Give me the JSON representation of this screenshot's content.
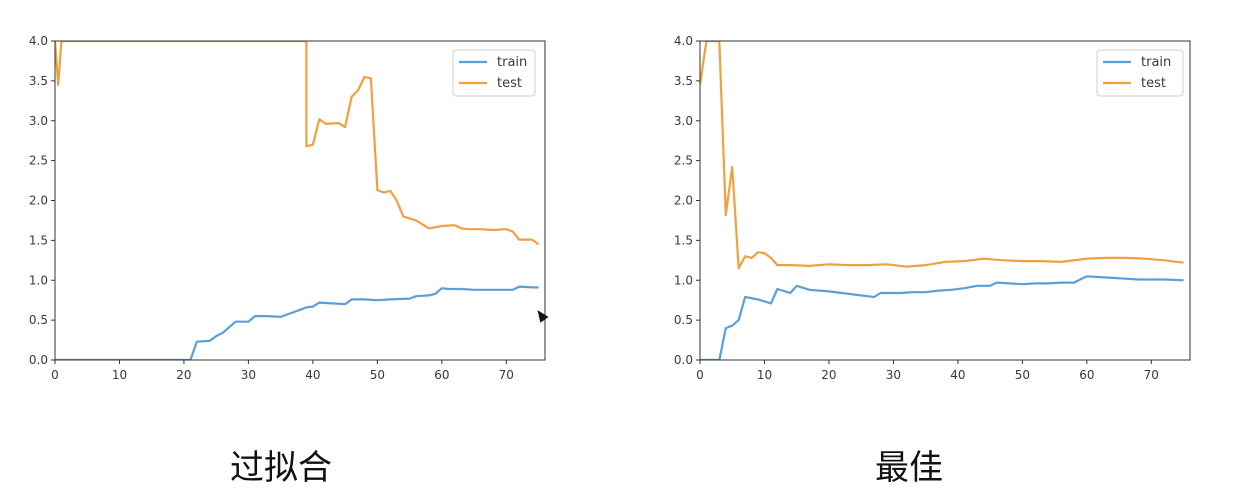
{
  "colors": {
    "train": "#5aa0d8",
    "test": "#f0a040",
    "axes": "#333333",
    "legend_border": "#cfcfcf"
  },
  "icons": {
    "cursor": "mouse-pointer-icon"
  },
  "chart_data": [
    {
      "type": "line",
      "caption": "过拟合",
      "xlim": [
        0,
        76
      ],
      "ylim": [
        0,
        4
      ],
      "xticks": [
        0,
        10,
        20,
        30,
        40,
        50,
        60,
        70
      ],
      "yticks": [
        0.0,
        0.5,
        1.0,
        1.5,
        2.0,
        2.5,
        3.0,
        3.5,
        4.0
      ],
      "tick_labels_x": [
        "0",
        "10",
        "20",
        "30",
        "40",
        "50",
        "60",
        "70"
      ],
      "tick_labels_y": [
        "0.0",
        "0.5",
        "1.0",
        "1.5",
        "2.0",
        "2.5",
        "3.0",
        "3.5",
        "4.0"
      ],
      "legend": "top-right",
      "grid": false,
      "series": [
        {
          "name": "train",
          "x": [
            0,
            21,
            22,
            24,
            25,
            26,
            27,
            28,
            30,
            31,
            33,
            35,
            36,
            37,
            38,
            39,
            40,
            41,
            43,
            45,
            46,
            48,
            50,
            52,
            55,
            56,
            58,
            59,
            60,
            61,
            63,
            65,
            67,
            69,
            71,
            72,
            74,
            75
          ],
          "y": [
            0.0,
            0.0,
            0.23,
            0.24,
            0.3,
            0.34,
            0.41,
            0.48,
            0.48,
            0.55,
            0.55,
            0.54,
            0.57,
            0.6,
            0.63,
            0.66,
            0.67,
            0.72,
            0.71,
            0.7,
            0.76,
            0.76,
            0.75,
            0.76,
            0.77,
            0.8,
            0.81,
            0.83,
            0.9,
            0.89,
            0.89,
            0.88,
            0.88,
            0.88,
            0.88,
            0.92,
            0.91,
            0.91
          ]
        },
        {
          "name": "test",
          "x": [
            0,
            0.5,
            1,
            39,
            39,
            40,
            41,
            42,
            44,
            45,
            46,
            47,
            48,
            49,
            50,
            51,
            52,
            53,
            54,
            56,
            58,
            60,
            62,
            63,
            64,
            66,
            68,
            70,
            71,
            72,
            74,
            75
          ],
          "y": [
            4.0,
            3.45,
            4.0,
            4.0,
            2.68,
            2.7,
            3.02,
            2.96,
            2.97,
            2.92,
            3.3,
            3.38,
            3.55,
            3.53,
            2.13,
            2.1,
            2.12,
            2.0,
            1.8,
            1.75,
            1.65,
            1.68,
            1.69,
            1.65,
            1.64,
            1.64,
            1.63,
            1.64,
            1.61,
            1.51,
            1.51,
            1.45
          ]
        }
      ]
    },
    {
      "type": "line",
      "caption": "最佳",
      "xlim": [
        0,
        76
      ],
      "ylim": [
        0,
        4
      ],
      "xticks": [
        0,
        10,
        20,
        30,
        40,
        50,
        60,
        70
      ],
      "yticks": [
        0.0,
        0.5,
        1.0,
        1.5,
        2.0,
        2.5,
        3.0,
        3.5,
        4.0
      ],
      "tick_labels_x": [
        "0",
        "10",
        "20",
        "30",
        "40",
        "50",
        "60",
        "70"
      ],
      "tick_labels_y": [
        "0.0",
        "0.5",
        "1.0",
        "1.5",
        "2.0",
        "2.5",
        "3.0",
        "3.5",
        "4.0"
      ],
      "legend": "top-right",
      "grid": false,
      "series": [
        {
          "name": "train",
          "x": [
            0,
            3,
            4,
            5,
            6,
            7,
            9,
            11,
            12,
            14,
            15,
            17,
            20,
            22,
            24,
            26,
            27,
            28,
            31,
            33,
            35,
            37,
            39,
            41,
            43,
            45,
            46,
            48,
            50,
            52,
            54,
            56,
            58,
            60,
            62,
            64,
            66,
            68,
            70,
            72,
            75
          ],
          "y": [
            0.0,
            0.0,
            0.4,
            0.43,
            0.5,
            0.79,
            0.76,
            0.71,
            0.89,
            0.84,
            0.93,
            0.88,
            0.86,
            0.84,
            0.82,
            0.8,
            0.79,
            0.84,
            0.84,
            0.85,
            0.85,
            0.87,
            0.88,
            0.9,
            0.93,
            0.93,
            0.97,
            0.96,
            0.95,
            0.96,
            0.96,
            0.97,
            0.97,
            1.05,
            1.04,
            1.03,
            1.02,
            1.01,
            1.01,
            1.01,
            1.0
          ]
        },
        {
          "name": "test",
          "x": [
            0,
            1,
            2,
            3,
            4,
            5,
            6,
            7,
            8,
            9,
            10,
            11,
            12,
            14,
            17,
            20,
            23,
            26,
            29,
            32,
            35,
            38,
            41,
            44,
            47,
            50,
            53,
            56,
            59,
            60,
            63,
            66,
            69,
            72,
            75
          ],
          "y": [
            3.45,
            4.0,
            4.0,
            4.0,
            1.82,
            2.42,
            1.15,
            1.3,
            1.28,
            1.35,
            1.34,
            1.28,
            1.19,
            1.19,
            1.18,
            1.2,
            1.19,
            1.19,
            1.2,
            1.17,
            1.19,
            1.23,
            1.24,
            1.27,
            1.25,
            1.24,
            1.24,
            1.23,
            1.26,
            1.27,
            1.28,
            1.28,
            1.27,
            1.25,
            1.22
          ]
        }
      ]
    }
  ]
}
